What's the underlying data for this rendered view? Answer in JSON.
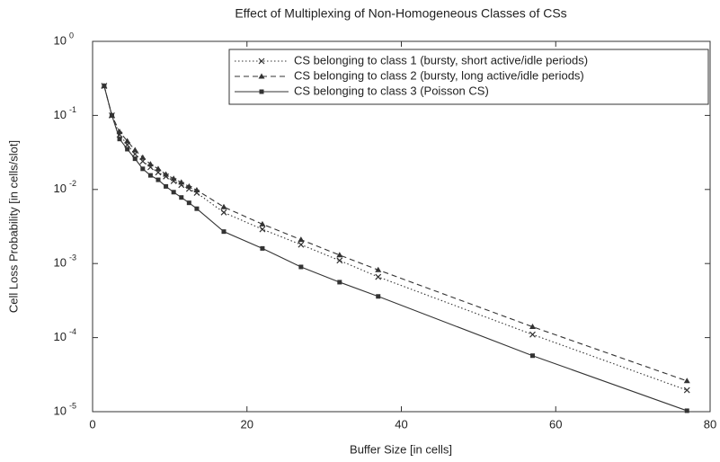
{
  "chart_data": {
    "type": "line",
    "title": "Effect of Multiplexing of Non-Homogeneous Classes of CSs",
    "x_label": "Buffer Size [in cells]",
    "y_label": "Cell Loss Probability [in cells/slot]",
    "x": [
      1.5,
      2.5,
      3.5,
      4.5,
      5.5,
      6.5,
      7.5,
      8.5,
      9.5,
      10.5,
      11.5,
      12.5,
      13.5,
      17,
      22,
      27,
      32,
      37,
      57,
      77
    ],
    "series": [
      {
        "name": "CS belonging to class 1 (bursty, short active/idle periods)",
        "color": "#333333",
        "dash": "dotted",
        "marker": "x",
        "values": [
          0.25,
          0.1,
          0.055,
          0.04,
          0.03,
          0.024,
          0.02,
          0.017,
          0.015,
          0.013,
          0.0115,
          0.0102,
          0.009,
          0.0049,
          0.0029,
          0.0018,
          0.0011,
          0.00066,
          0.00011,
          1.95e-05
        ]
      },
      {
        "name": "CS belonging to class 2 (bursty, long active/idle periods)",
        "color": "#333333",
        "dash": "dashed",
        "marker": "triangle",
        "values": [
          0.25,
          0.1,
          0.06,
          0.045,
          0.034,
          0.027,
          0.022,
          0.019,
          0.016,
          0.014,
          0.0125,
          0.011,
          0.0098,
          0.0058,
          0.0034,
          0.0021,
          0.0013,
          0.00082,
          0.00014,
          2.6e-05
        ]
      },
      {
        "name": "CS belonging to class 3 (Poisson CS)",
        "color": "#333333",
        "dash": "solid",
        "marker": "square",
        "values": [
          0.25,
          0.1,
          0.048,
          0.035,
          0.026,
          0.019,
          0.0155,
          0.0135,
          0.011,
          0.0092,
          0.0078,
          0.0066,
          0.0055,
          0.0027,
          0.0016,
          0.0009,
          0.00056,
          0.00036,
          5.7e-05,
          1.03e-05
        ]
      }
    ],
    "xlim": [
      0,
      80
    ],
    "xticks": [
      0,
      20,
      40,
      60,
      80
    ],
    "ylim": [
      1e-05,
      1
    ],
    "log_y": true,
    "yticks": [
      {
        "value": 1,
        "label": "10",
        "sup": "0"
      },
      {
        "value": 0.1,
        "label": "10",
        "sup": "-1"
      },
      {
        "value": 0.01,
        "label": "10",
        "sup": "-2"
      },
      {
        "value": 0.001,
        "label": "10",
        "sup": "-3"
      },
      {
        "value": 0.0001,
        "label": "10",
        "sup": "-4"
      },
      {
        "value": 1e-05,
        "label": "10",
        "sup": "-5"
      }
    ],
    "legend": "top-right",
    "grid": false
  }
}
